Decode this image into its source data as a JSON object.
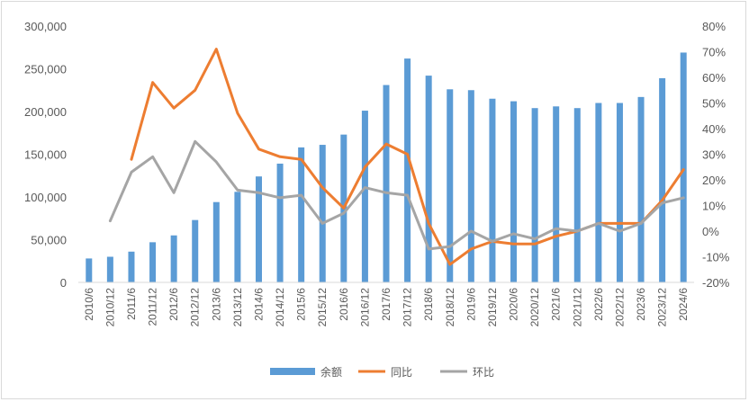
{
  "chart_data": {
    "type": "bar+line",
    "title": "",
    "categories": [
      "2010/6",
      "2010/12",
      "2011/6",
      "2011/12",
      "2012/6",
      "2012/12",
      "2013/6",
      "2013/12",
      "2014/6",
      "2014/12",
      "2015/6",
      "2015/12",
      "2016/6",
      "2016/12",
      "2017/6",
      "2017/12",
      "2018/6",
      "2018/12",
      "2019/6",
      "2019/12",
      "2020/6",
      "2020/12",
      "2021/6",
      "2021/12",
      "2022/6",
      "2022/12",
      "2023/6",
      "2023/12",
      "2024/6"
    ],
    "series": [
      {
        "name": "余额",
        "type": "bar",
        "axis": "left",
        "color": "#5B9BD5",
        "values": [
          28000,
          30000,
          36000,
          47000,
          55000,
          73000,
          94000,
          106000,
          124000,
          139000,
          158000,
          161000,
          173000,
          201000,
          231000,
          262000,
          242000,
          226000,
          225000,
          215000,
          212000,
          204000,
          206000,
          204000,
          210000,
          210000,
          217000,
          239000,
          269000
        ]
      },
      {
        "name": "同比",
        "type": "line",
        "axis": "right",
        "color": "#ED7D31",
        "values": [
          null,
          null,
          28,
          58,
          48,
          55,
          71,
          46,
          32,
          29,
          28,
          17,
          9,
          25,
          34,
          30,
          3,
          -13,
          -7,
          -4,
          -5,
          -5,
          -2,
          0,
          3,
          3,
          3,
          12,
          24
        ]
      },
      {
        "name": "环比",
        "type": "line",
        "axis": "right",
        "color": "#A5A5A5",
        "values": [
          null,
          4,
          23,
          29,
          15,
          35,
          27,
          16,
          15,
          13,
          14,
          3,
          7,
          17,
          15,
          14,
          -7,
          -6,
          0,
          -4,
          -1,
          -3,
          1,
          0,
          3,
          0,
          3,
          11,
          13
        ]
      }
    ],
    "y_left": {
      "min": 0,
      "max": 300000,
      "step": 50000,
      "ticks": [
        "0",
        "50,000",
        "100,000",
        "150,000",
        "200,000",
        "250,000",
        "300,000"
      ]
    },
    "y_right": {
      "min": -20,
      "max": 80,
      "step": 10,
      "ticks": [
        "-20%",
        "-10%",
        "0%",
        "10%",
        "20%",
        "30%",
        "40%",
        "50%",
        "60%",
        "70%",
        "80%"
      ]
    },
    "legend": {
      "position": "bottom",
      "items": [
        "余额",
        "同比",
        "环比"
      ]
    },
    "grid": false
  }
}
